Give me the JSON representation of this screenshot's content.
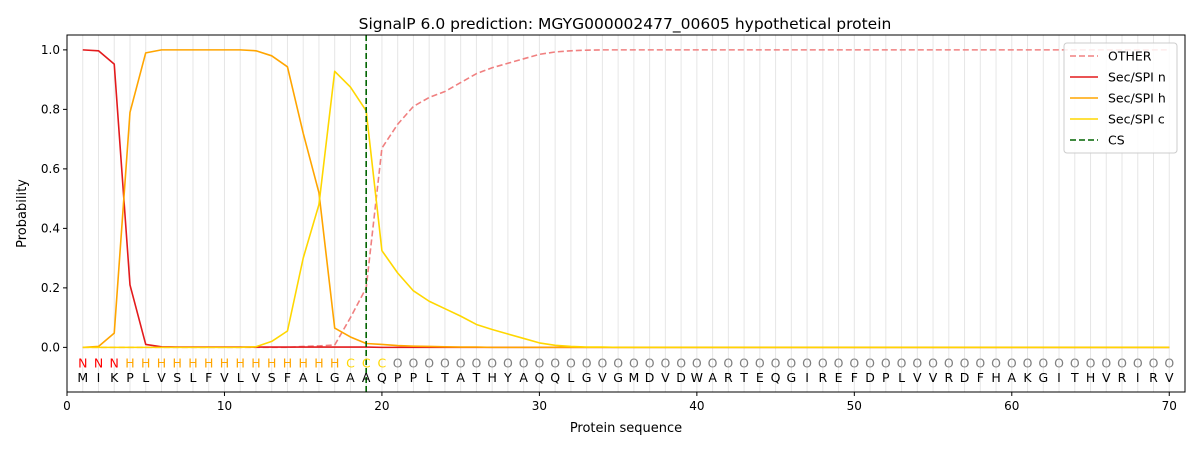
{
  "chart_data": {
    "type": "line",
    "title": "SignalP 6.0 prediction: MGYG000002477_00605 hypothetical protein",
    "xlabel": "Protein sequence",
    "ylabel": "Probability",
    "xlim": [
      0,
      71
    ],
    "ylim": [
      -0.15,
      1.05
    ],
    "x_ticks": [
      0,
      10,
      20,
      30,
      40,
      50,
      60,
      70
    ],
    "y_ticks": [
      0.0,
      0.2,
      0.4,
      0.6,
      0.8,
      1.0
    ],
    "x_tick_labels": [
      "0",
      "10",
      "20",
      "30",
      "40",
      "50",
      "60",
      "70"
    ],
    "y_tick_labels": [
      "0.0",
      "0.2",
      "0.4",
      "0.6",
      "0.8",
      "1.0"
    ],
    "grid": "vertical lines at each residue position",
    "legend_position": "top-right",
    "legend": [
      "OTHER",
      "Sec/SPI n",
      "Sec/SPI h",
      "Sec/SPI c",
      "CS"
    ],
    "cleavage_site": 19,
    "sequence": "MIKPLVSLFVLVSFALGAAQPPLTATHYAQQLGVGMDVDWARTEQGIREFDPLVVRDFHAKGITHVRIRV",
    "labels": "NNNHHHHHHHHHHHHHHCCCOOOOOOOOOOOOOOOOOOOOOOOOOOOOOOOOOOOOOOOOOOOOOOOOOOO",
    "label_colors": {
      "N": "#ff0000",
      "H": "#ffa500",
      "C": "#ffd700",
      "O": "#808080"
    },
    "series": [
      {
        "name": "OTHER",
        "color": "#f08080",
        "style": "dashed",
        "values": [
          0.0,
          0.0,
          0.0,
          0.0,
          0.0,
          0.0,
          0.0,
          0.0,
          0.0,
          0.0,
          0.0,
          0.0,
          0.0,
          0.0,
          0.003,
          0.005,
          0.008,
          0.1,
          0.2,
          0.67,
          0.75,
          0.81,
          0.84,
          0.86,
          0.89,
          0.92,
          0.94,
          0.955,
          0.97,
          0.985,
          0.993,
          0.997,
          0.999,
          1.0,
          1.0,
          1.0,
          1.0,
          1.0,
          1.0,
          1.0,
          1.0,
          1.0,
          1.0,
          1.0,
          1.0,
          1.0,
          1.0,
          1.0,
          1.0,
          1.0,
          1.0,
          1.0,
          1.0,
          1.0,
          1.0,
          1.0,
          1.0,
          1.0,
          1.0,
          1.0,
          1.0,
          1.0,
          1.0,
          1.0,
          1.0,
          1.0,
          1.0,
          1.0,
          1.0,
          1.0
        ]
      },
      {
        "name": "Sec/SPI n",
        "color": "#e31a1c",
        "style": "solid",
        "values": [
          1.0,
          0.997,
          0.952,
          0.21,
          0.01,
          0.002,
          0.001,
          0.001,
          0.001,
          0.001,
          0.001,
          0.001,
          0.001,
          0.001,
          0.001,
          0.001,
          0.001,
          0.001,
          0.001,
          0.0,
          0.0,
          0.0,
          0.0,
          0.0,
          0.0,
          0.0,
          0.0,
          0.0,
          0.0,
          0.0,
          0.0,
          0.0,
          0.0,
          0.0,
          0.0,
          0.0,
          0.0,
          0.0,
          0.0,
          0.0,
          0.0,
          0.0,
          0.0,
          0.0,
          0.0,
          0.0,
          0.0,
          0.0,
          0.0,
          0.0,
          0.0,
          0.0,
          0.0,
          0.0,
          0.0,
          0.0,
          0.0,
          0.0,
          0.0,
          0.0,
          0.0,
          0.0,
          0.0,
          0.0,
          0.0,
          0.0,
          0.0,
          0.0,
          0.0,
          0.0
        ]
      },
      {
        "name": "Sec/SPI h",
        "color": "#ffa500",
        "style": "solid",
        "values": [
          0.0,
          0.003,
          0.048,
          0.79,
          0.99,
          1.0,
          1.0,
          1.0,
          1.0,
          1.0,
          1.0,
          0.997,
          0.98,
          0.943,
          0.72,
          0.52,
          0.065,
          0.035,
          0.013,
          0.01,
          0.006,
          0.004,
          0.003,
          0.002,
          0.001,
          0.001,
          0.0,
          0.0,
          0.0,
          0.0,
          0.0,
          0.0,
          0.0,
          0.0,
          0.0,
          0.0,
          0.0,
          0.0,
          0.0,
          0.0,
          0.0,
          0.0,
          0.0,
          0.0,
          0.0,
          0.0,
          0.0,
          0.0,
          0.0,
          0.0,
          0.0,
          0.0,
          0.0,
          0.0,
          0.0,
          0.0,
          0.0,
          0.0,
          0.0,
          0.0,
          0.0,
          0.0,
          0.0,
          0.0,
          0.0,
          0.0,
          0.0,
          0.0,
          0.0,
          0.0
        ]
      },
      {
        "name": "Sec/SPI c",
        "color": "#ffd700",
        "style": "solid",
        "values": [
          0.0,
          0.0,
          0.0,
          0.0,
          0.0,
          0.0,
          0.0,
          0.0,
          0.0,
          0.0,
          0.0,
          0.002,
          0.02,
          0.055,
          0.3,
          0.48,
          0.928,
          0.875,
          0.795,
          0.325,
          0.25,
          0.19,
          0.155,
          0.13,
          0.105,
          0.077,
          0.06,
          0.045,
          0.03,
          0.015,
          0.007,
          0.003,
          0.001,
          0.001,
          0.0,
          0.0,
          0.0,
          0.0,
          0.0,
          0.0,
          0.0,
          0.0,
          0.0,
          0.0,
          0.0,
          0.0,
          0.0,
          0.0,
          0.0,
          0.0,
          0.0,
          0.0,
          0.0,
          0.0,
          0.0,
          0.0,
          0.0,
          0.0,
          0.0,
          0.0,
          0.0,
          0.0,
          0.0,
          0.0,
          0.0,
          0.0,
          0.0,
          0.0,
          0.0,
          0.0
        ]
      }
    ],
    "cs_color": "#006400"
  }
}
